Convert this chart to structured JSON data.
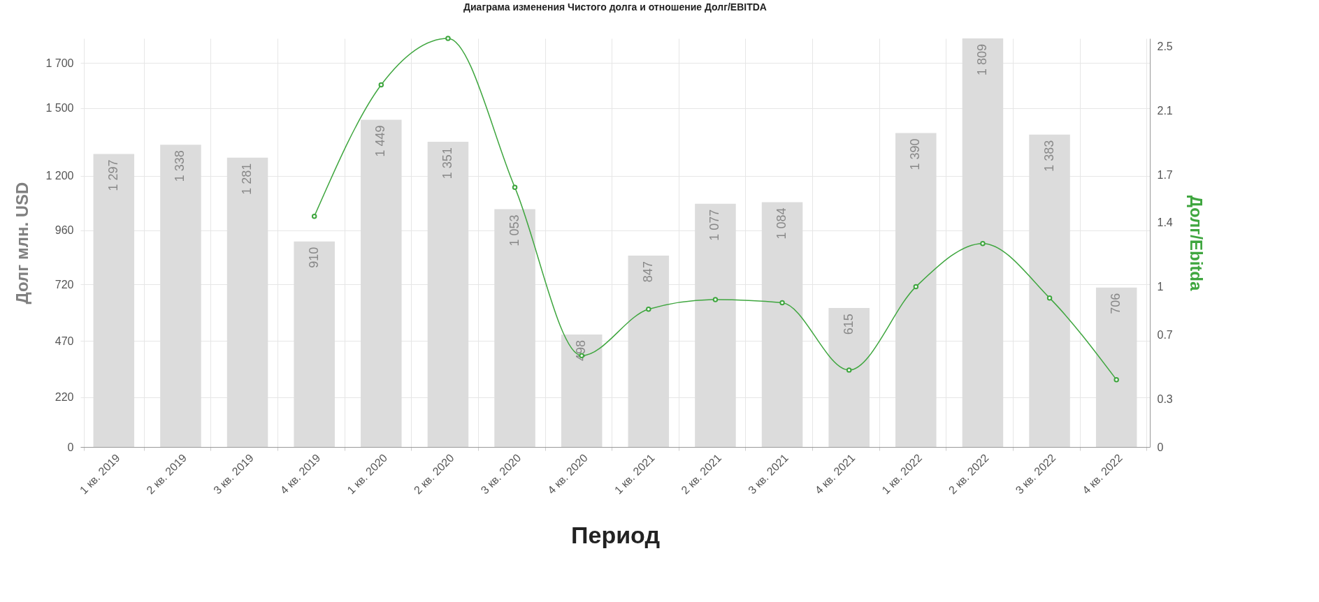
{
  "chart_data": {
    "type": "bar",
    "title": "Диаграма изменения Чистого долга и отношение Долг/EBITDA",
    "xlabel": "Период",
    "ylabel": "Долг млн. USD",
    "y2label": "Долг/Ebitda",
    "categories": [
      "1 кв. 2019",
      "2 кв. 2019",
      "3 кв. 2019",
      "4 кв. 2019",
      "1 кв. 2020",
      "2 кв. 2020",
      "3 кв. 2020",
      "4 кв. 2020",
      "1 кв. 2021",
      "2 кв. 2021",
      "3 кв. 2021",
      "4 кв. 2021",
      "1 кв. 2022",
      "2 кв. 2022",
      "3 кв. 2022",
      "4 кв. 2022"
    ],
    "series": [
      {
        "color": "#dcdcdc",
        "data_labels": true,
        "values": [
          1297,
          1338,
          1281,
          910,
          1449,
          1351,
          1053,
          498,
          847,
          1077,
          1084,
          615,
          1390,
          1809,
          1383,
          706
        ]
      },
      {
        "type": "line",
        "axis": "y2",
        "color": "#3fa63f",
        "marker": "circle",
        "values": [
          null,
          null,
          null,
          1.44,
          2.26,
          2.55,
          1.62,
          0.57,
          0.86,
          0.92,
          0.9,
          0.48,
          1.0,
          1.27,
          0.93,
          0.42
        ]
      }
    ],
    "ylim": [
      0,
      1809
    ],
    "yticks": [
      0,
      220,
      470,
      720,
      960,
      1200,
      1500,
      1700
    ],
    "y2lim": [
      0,
      2.55
    ],
    "y2ticks": [
      0,
      0.3,
      0.7,
      1,
      1.4,
      1.7,
      2.1,
      2.5
    ],
    "grid": true
  }
}
